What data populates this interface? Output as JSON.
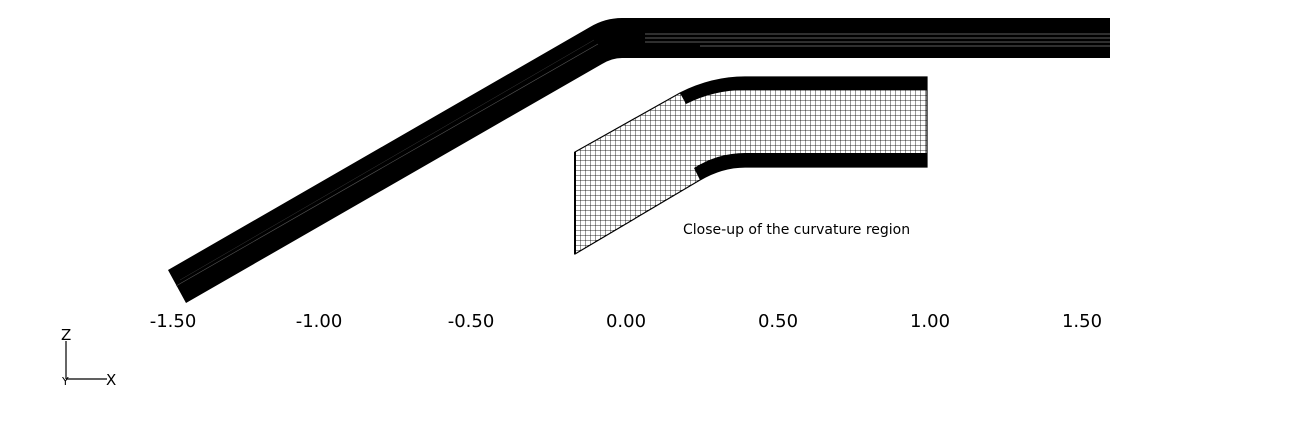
{
  "x_ticks": [
    "-1.50",
    "-1.00",
    "-0.50",
    "0.00",
    "0.50",
    "1.00",
    "1.50"
  ],
  "inset_caption": "Close-up of the curvature region",
  "triad": {
    "vertical_label": "Z",
    "horizontal_label": "X",
    "origin_label": "Y"
  },
  "colors": {
    "mesh": "#000000",
    "background": "#ffffff"
  }
}
